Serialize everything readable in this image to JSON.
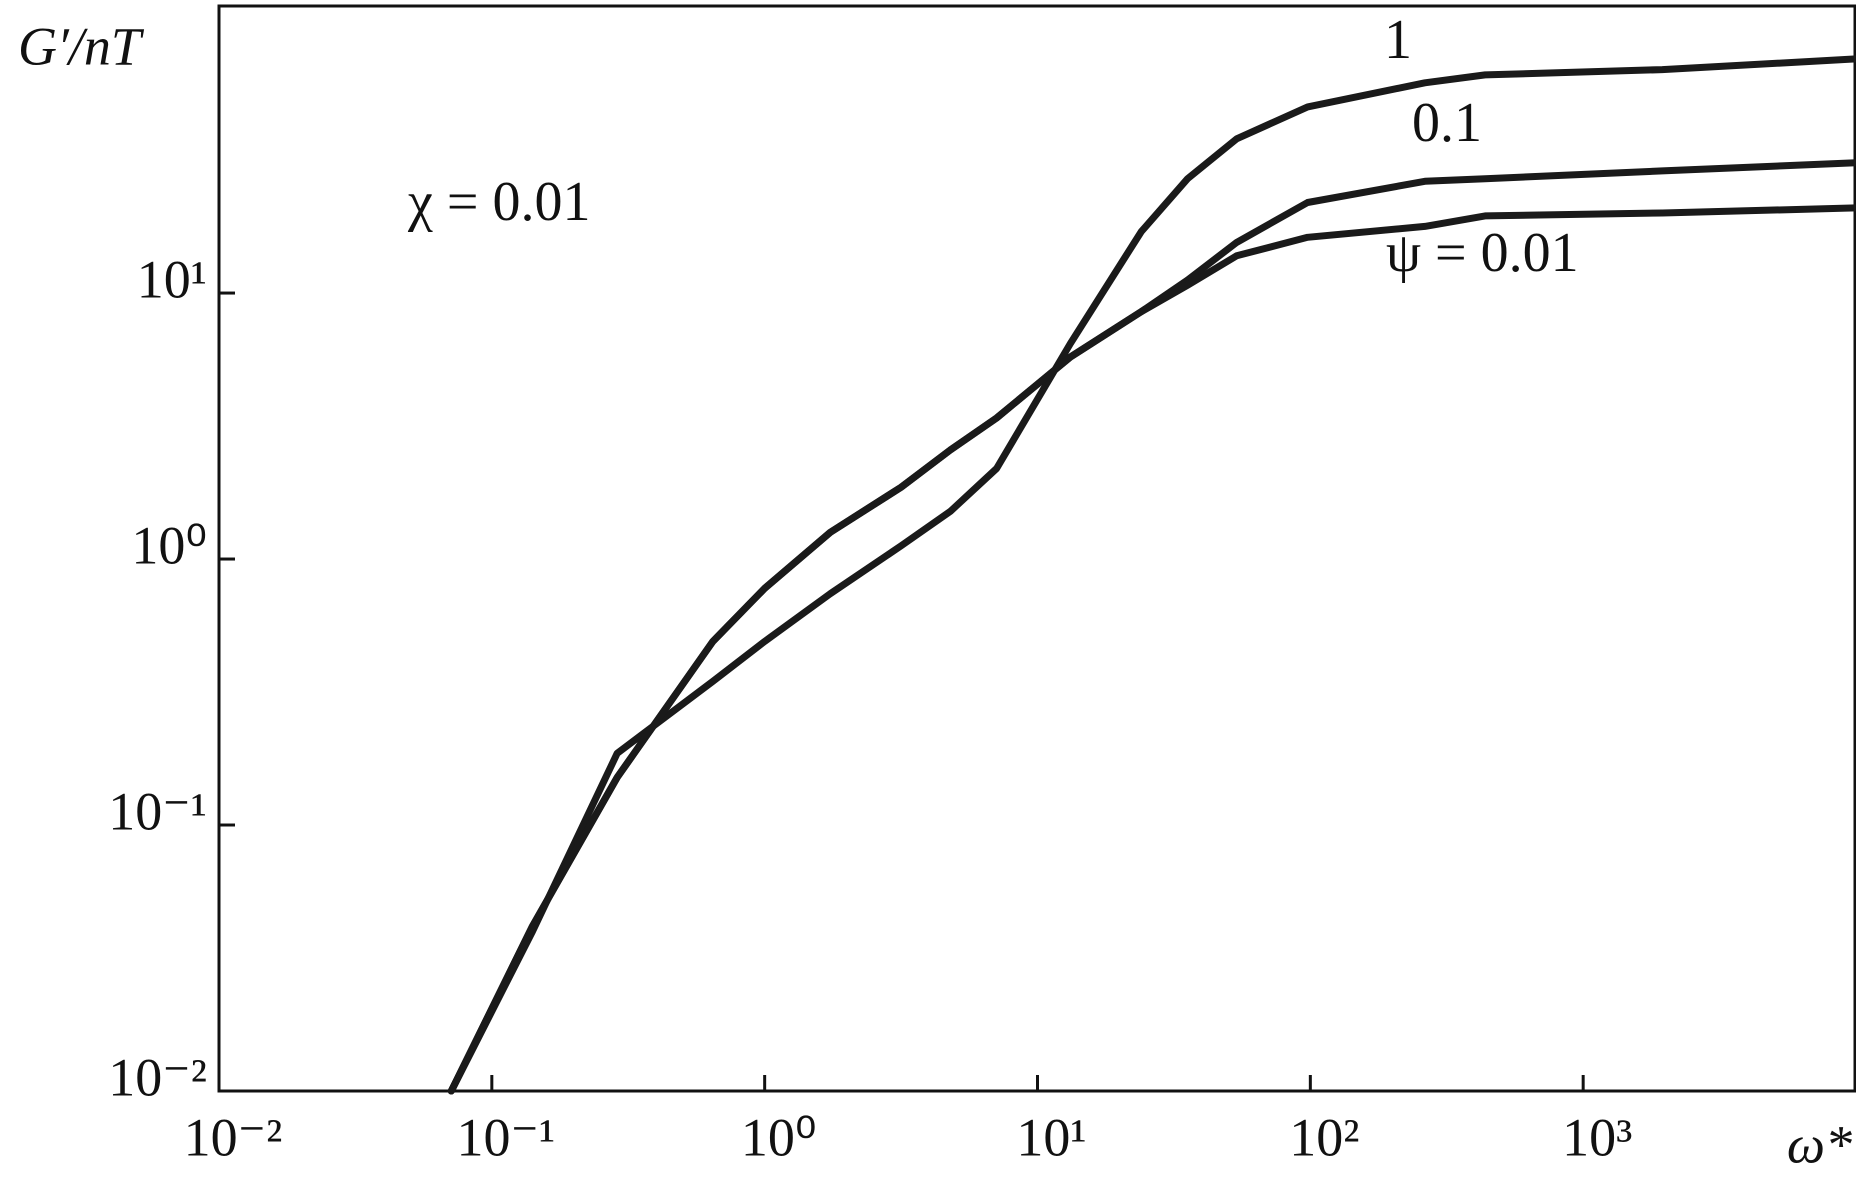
{
  "chart_data": {
    "type": "line",
    "y_label": "G′/nT",
    "x_label": "ω*",
    "annotation": "χ = 0.01",
    "xscale": "log",
    "yscale": "log",
    "xlim": [
      0.01,
      10000
    ],
    "ylim": [
      0.01,
      120
    ],
    "xticks": [
      {
        "value": 0.01,
        "label": "10⁻²"
      },
      {
        "value": 0.1,
        "label": "10⁻¹"
      },
      {
        "value": 1,
        "label": "10⁰"
      },
      {
        "value": 10,
        "label": "10¹"
      },
      {
        "value": 100,
        "label": "10²"
      },
      {
        "value": 1000,
        "label": "10³"
      }
    ],
    "yticks": [
      {
        "value": 0.01,
        "label": "10⁻²"
      },
      {
        "value": 0.1,
        "label": "10⁻¹"
      },
      {
        "value": 1,
        "label": "10⁰"
      },
      {
        "value": 10,
        "label": "10¹"
      }
    ],
    "x": [
      0.071,
      0.141,
      0.288,
      0.646,
      1,
      1.74,
      3.16,
      4.79,
      7.08,
      13.2,
      24,
      35.5,
      53.7,
      97.7,
      263,
      437,
      1950,
      10000
    ],
    "series": [
      {
        "name": "1",
        "color": "#1a1a1a",
        "values": [
          0.01,
          0.0398,
          0.186,
          0.347,
          0.49,
          0.741,
          1.12,
          1.51,
          2.19,
          6.46,
          17.0,
          26.9,
          38.0,
          50.1,
          61.7,
          66.1,
          69.2,
          75.9
        ]
      },
      {
        "name": "0.1",
        "color": "#1a1a1a",
        "values": [
          0.01,
          0.0417,
          0.151,
          0.49,
          0.776,
          1.26,
          1.86,
          2.57,
          3.39,
          5.75,
          8.51,
          11.2,
          15.5,
          21.9,
          26.3,
          26.9,
          28.8,
          30.9
        ]
      },
      {
        "name": "ψ = 0.01",
        "color": "#1a1a1a",
        "values": [
          0.01,
          0.0417,
          0.151,
          0.49,
          0.776,
          1.26,
          1.86,
          2.57,
          3.39,
          5.75,
          8.51,
          10.7,
          13.8,
          16.2,
          17.8,
          19.5,
          20.0,
          20.9
        ]
      }
    ]
  }
}
